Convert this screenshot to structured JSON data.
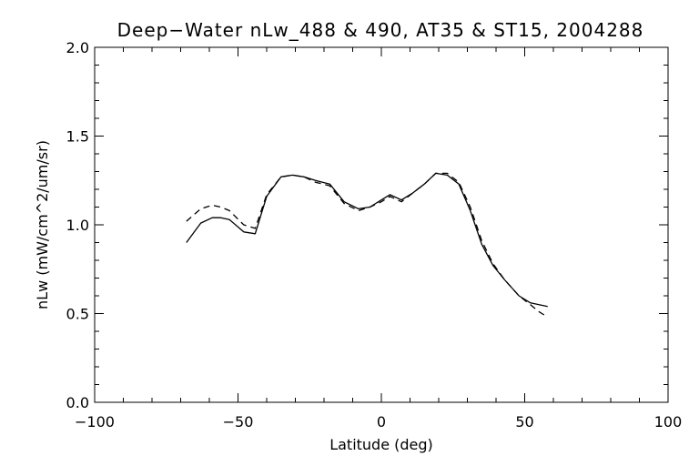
{
  "chart_data": {
    "type": "line",
    "title": "Deep−Water nLw_488 & 490, AT35 & ST15, 2004288",
    "xlabel": "Latitude (deg)",
    "ylabel": "nLw (mW/cm^2/um/sr)",
    "xlim": [
      -100,
      100
    ],
    "ylim": [
      0.0,
      2.0
    ],
    "x_ticks": [
      -100,
      -50,
      0,
      50,
      100
    ],
    "x_tick_labels": [
      "−100",
      "−50",
      "0",
      "50",
      "100"
    ],
    "y_ticks": [
      0.0,
      0.5,
      1.0,
      1.5,
      2.0
    ],
    "y_tick_labels": [
      "0.0",
      "0.5",
      "1.0",
      "1.5",
      "2.0"
    ],
    "grid": false,
    "legend": "none",
    "series": [
      {
        "style": "solid",
        "color": "#000000",
        "x": [
          -68,
          -63,
          -59,
          -56,
          -53,
          -48,
          -44,
          -40,
          -35,
          -31,
          -27,
          -23,
          -18,
          -13,
          -8,
          -4,
          0,
          3,
          7,
          11,
          15,
          19,
          23,
          27,
          31,
          35,
          39,
          43,
          48,
          52,
          55,
          58
        ],
        "y": [
          0.9,
          1.01,
          1.04,
          1.04,
          1.03,
          0.96,
          0.95,
          1.16,
          1.27,
          1.28,
          1.27,
          1.25,
          1.23,
          1.13,
          1.09,
          1.1,
          1.14,
          1.17,
          1.14,
          1.18,
          1.23,
          1.29,
          1.28,
          1.23,
          1.08,
          0.89,
          0.77,
          0.69,
          0.6,
          0.56,
          0.55,
          0.54
        ]
      },
      {
        "style": "dashed",
        "color": "#000000",
        "x": [
          -68,
          -63,
          -59,
          -56,
          -53,
          -48,
          -44,
          -40,
          -35,
          -31,
          -27,
          -23,
          -18,
          -13,
          -8,
          -4,
          0,
          3,
          7,
          11,
          15,
          19,
          23,
          27,
          31,
          35,
          39,
          43,
          48,
          52,
          55,
          58
        ],
        "y": [
          1.02,
          1.09,
          1.11,
          1.1,
          1.08,
          1.0,
          0.98,
          1.17,
          1.27,
          1.28,
          1.27,
          1.24,
          1.22,
          1.12,
          1.08,
          1.1,
          1.13,
          1.16,
          1.13,
          1.18,
          1.23,
          1.29,
          1.29,
          1.24,
          1.1,
          0.91,
          0.78,
          0.69,
          0.6,
          0.55,
          0.51,
          0.48
        ]
      }
    ]
  }
}
